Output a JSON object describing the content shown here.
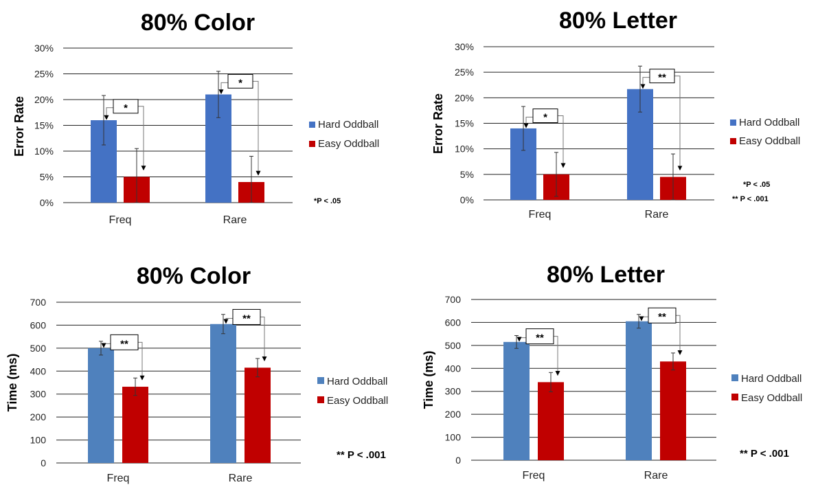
{
  "chart_data": [
    {
      "type": "bar",
      "title": "80% Color",
      "ylabel": "Error Rate",
      "categories": [
        "Freq",
        "Rare"
      ],
      "yticks": [
        "0%",
        "5%",
        "10%",
        "15%",
        "20%",
        "25%",
        "30%"
      ],
      "ylim": [
        0,
        30
      ],
      "grid": true,
      "legend_position": "right",
      "series": [
        {
          "name": "Hard Oddball",
          "color": "#4472c4",
          "values": [
            16,
            21
          ],
          "error": [
            4.8,
            4.5
          ]
        },
        {
          "name": "Easy Oddball",
          "color": "#c00000",
          "values": [
            5,
            4
          ],
          "error": [
            5.5,
            5
          ]
        }
      ],
      "significance": [
        "*",
        "*"
      ],
      "notes": [
        "*P < .05"
      ]
    },
    {
      "type": "bar",
      "title": "80% Letter",
      "ylabel": "Error Rate",
      "categories": [
        "Freq",
        "Rare"
      ],
      "yticks": [
        "0%",
        "5%",
        "10%",
        "15%",
        "20%",
        "25%",
        "30%"
      ],
      "ylim": [
        0,
        30
      ],
      "grid": true,
      "legend_position": "right",
      "series": [
        {
          "name": "Hard Oddball",
          "color": "#4472c4",
          "values": [
            14,
            21.7
          ],
          "error": [
            4.3,
            4.5
          ]
        },
        {
          "name": "Easy Oddball",
          "color": "#c00000",
          "values": [
            5,
            4.5
          ],
          "error": [
            4.3,
            4.5
          ]
        }
      ],
      "significance": [
        "*",
        "**"
      ],
      "notes": [
        "*P < .05",
        "** P < .001"
      ]
    },
    {
      "type": "bar",
      "title": "80% Color",
      "ylabel": "Time (ms)",
      "categories": [
        "Freq",
        "Rare"
      ],
      "yticks": [
        "0",
        "100",
        "200",
        "300",
        "400",
        "500",
        "600",
        "700"
      ],
      "ylim": [
        0,
        700
      ],
      "grid": true,
      "legend_position": "right",
      "series": [
        {
          "name": "Hard Oddball",
          "color": "#4f81bd",
          "values": [
            500,
            605
          ],
          "error": [
            30,
            42
          ]
        },
        {
          "name": "Easy Oddball",
          "color": "#c00000",
          "values": [
            332,
            415
          ],
          "error": [
            38,
            40
          ]
        }
      ],
      "significance": [
        "**",
        "**"
      ],
      "notes": [
        "** P < .001"
      ]
    },
    {
      "type": "bar",
      "title": "80% Letter",
      "ylabel": "Time (ms)",
      "categories": [
        "Freq",
        "Rare"
      ],
      "yticks": [
        "0",
        "100",
        "200",
        "300",
        "400",
        "500",
        "600",
        "700"
      ],
      "ylim": [
        0,
        700
      ],
      "grid": true,
      "legend_position": "right",
      "series": [
        {
          "name": "Hard Oddball",
          "color": "#4f81bd",
          "values": [
            515,
            605
          ],
          "error": [
            28,
            30
          ]
        },
        {
          "name": "Easy Oddball",
          "color": "#c00000",
          "values": [
            340,
            430
          ],
          "error": [
            42,
            37
          ]
        }
      ],
      "significance": [
        "**",
        "**"
      ],
      "notes": [
        "** P < .001"
      ]
    }
  ]
}
